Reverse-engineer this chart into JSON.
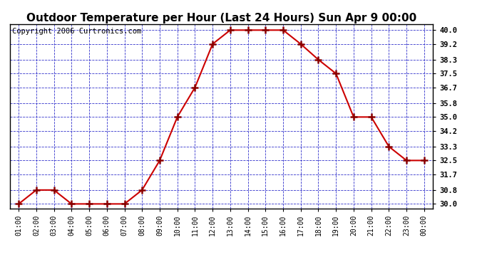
{
  "title": "Outdoor Temperature per Hour (Last 24 Hours) Sun Apr 9 00:00",
  "copyright": "Copyright 2006 Curtronics.com",
  "hours": [
    "01:00",
    "02:00",
    "03:00",
    "04:00",
    "05:00",
    "06:00",
    "07:00",
    "08:00",
    "09:00",
    "10:00",
    "11:00",
    "12:00",
    "13:00",
    "14:00",
    "15:00",
    "16:00",
    "17:00",
    "18:00",
    "19:00",
    "20:00",
    "21:00",
    "22:00",
    "23:00",
    "00:00"
  ],
  "temps": [
    30.0,
    30.8,
    30.8,
    30.0,
    30.0,
    30.0,
    30.0,
    30.8,
    32.5,
    35.0,
    36.7,
    39.2,
    40.0,
    40.0,
    40.0,
    40.0,
    39.2,
    38.3,
    37.5,
    35.0,
    35.0,
    33.3,
    32.5,
    32.5
  ],
  "yticks": [
    30.0,
    30.8,
    31.7,
    32.5,
    33.3,
    34.2,
    35.0,
    35.8,
    36.7,
    37.5,
    38.3,
    39.2,
    40.0
  ],
  "ymin": 29.75,
  "ymax": 40.35,
  "line_color": "#cc0000",
  "marker_color": "#880000",
  "grid_color": "#3333cc",
  "bg_color": "#ffffff",
  "outer_bg": "#ffffff",
  "title_fontsize": 11,
  "copyright_fontsize": 7.5
}
